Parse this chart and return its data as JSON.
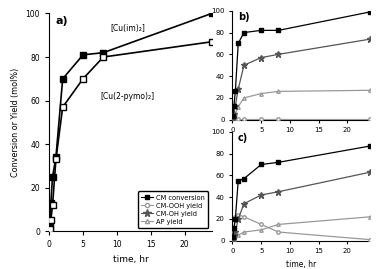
{
  "panel_a": {
    "label": "a)",
    "cu_im": {
      "label": "[Cu(im)₂]",
      "time": [
        0.083,
        0.25,
        0.5,
        1,
        2,
        5,
        8,
        24
      ],
      "conversion": [
        2,
        13,
        25,
        34,
        70,
        81,
        82,
        100
      ]
    },
    "cu_pymo": {
      "label": "[Cu(2-pymo)₂]",
      "time": [
        0.083,
        0.25,
        0.5,
        1,
        2,
        5,
        8,
        24
      ],
      "conversion": [
        1,
        5,
        12,
        33,
        57,
        70,
        80,
        87
      ]
    }
  },
  "panel_b": {
    "label": "b)",
    "time": [
      0.083,
      0.25,
      0.5,
      1,
      2,
      5,
      8,
      24
    ],
    "cm_conversion": [
      3,
      13,
      26,
      70,
      80,
      82,
      82,
      99
    ],
    "cmooh_yield": [
      0.5,
      0.5,
      0.5,
      0.5,
      0.5,
      0.5,
      0.5,
      0.5
    ],
    "cmoh_yield": [
      1,
      5,
      13,
      28,
      50,
      57,
      60,
      74
    ],
    "ap_yield": [
      0,
      2,
      5,
      12,
      20,
      24,
      26,
      27
    ]
  },
  "panel_c": {
    "label": "c)",
    "time": [
      0.083,
      0.25,
      0.5,
      1,
      2,
      5,
      8,
      24
    ],
    "cm_conversion": [
      3,
      12,
      20,
      55,
      57,
      70,
      72,
      87
    ],
    "cmooh_yield": [
      1,
      8,
      22,
      24,
      22,
      15,
      8,
      1
    ],
    "cmoh_yield": [
      1,
      4,
      8,
      20,
      34,
      42,
      45,
      63
    ],
    "ap_yield": [
      0,
      2,
      4,
      5,
      8,
      10,
      15,
      22
    ]
  },
  "legend_labels": [
    "CM conversion",
    "CM-OOH yield",
    "CM-OH yield",
    "AP yield"
  ],
  "xlabel": "time, hr",
  "ylabel": "Conversion or Yield (mol%)",
  "ylim": [
    0,
    100
  ],
  "xlim": [
    0,
    24
  ],
  "xlim_b": [
    0,
    24
  ],
  "yticks": [
    0,
    20,
    40,
    60,
    80,
    100
  ],
  "xticks_a": [
    0,
    5,
    10,
    15,
    20
  ],
  "xticks_bc": [
    0,
    5,
    10,
    15,
    20
  ],
  "black": "#000000",
  "dark_gray": "#555555",
  "light_gray": "#999999"
}
